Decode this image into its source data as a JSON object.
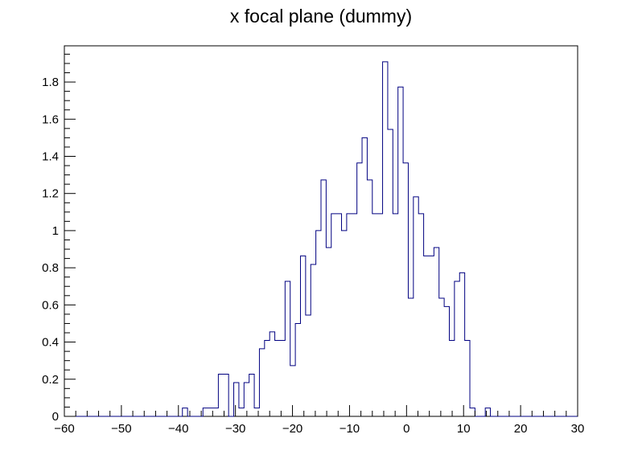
{
  "chart_data": {
    "type": "histogram",
    "title": "x focal plane (dummy)",
    "xlabel": "",
    "ylabel": "",
    "xlim": [
      -60,
      30
    ],
    "ylim": [
      0,
      1.995
    ],
    "grid": false,
    "legend": "none",
    "line_color": "#000080",
    "bin_width": 0.9,
    "bin_start": -60,
    "xticks": [
      -60,
      -50,
      -40,
      -30,
      -20,
      -10,
      0,
      10,
      20,
      30
    ],
    "xtick_labels": [
      "−60",
      "−50",
      "−40",
      "−30",
      "−20",
      "−10",
      "0",
      "10",
      "20",
      "30"
    ],
    "yticks": [
      0,
      0.2,
      0.4,
      0.6,
      0.8,
      1,
      1.2,
      1.4,
      1.6,
      1.8
    ],
    "ytick_labels": [
      "0",
      "0.2",
      "0.4",
      "0.6",
      "0.8",
      "1",
      "1.2",
      "1.4",
      "1.6",
      "1.8"
    ],
    "values": [
      0,
      0,
      0,
      0,
      0,
      0,
      0,
      0,
      0,
      0,
      0,
      0,
      0,
      0,
      0,
      0,
      0,
      0,
      0,
      0,
      0,
      0,
      0,
      0.045,
      0,
      0,
      0,
      0.045,
      0.045,
      0.045,
      0.227,
      0.227,
      0,
      0.182,
      0.045,
      0.182,
      0.227,
      0.045,
      0.364,
      0.409,
      0.455,
      0.409,
      0.409,
      0.727,
      0.273,
      0.5,
      0.864,
      0.545,
      0.818,
      1.0,
      1.273,
      0.909,
      1.091,
      1.091,
      1.0,
      1.091,
      1.091,
      1.364,
      1.5,
      1.273,
      1.091,
      1.091,
      1.909,
      1.545,
      1.091,
      1.773,
      1.364,
      0.636,
      1.182,
      1.091,
      0.864,
      0.864,
      0.909,
      0.636,
      0.591,
      0.409,
      0.727,
      0.773,
      0.409,
      0.045,
      0,
      0,
      0.045,
      0,
      0,
      0,
      0,
      0,
      0,
      0,
      0,
      0,
      0,
      0,
      0,
      0,
      0,
      0,
      0,
      0
    ]
  }
}
